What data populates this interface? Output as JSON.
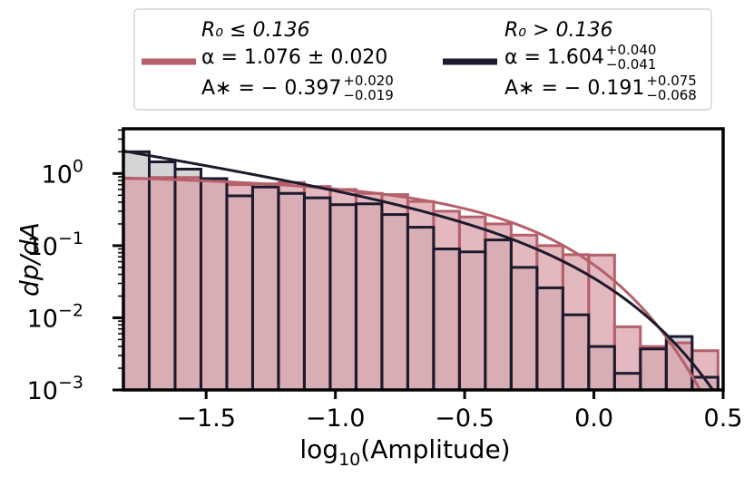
{
  "chart_data": {
    "type": "histogram",
    "xlabel": "log10(Amplitude)",
    "ylabel": "dp/dA",
    "xlim": [
      -1.82,
      0.5
    ],
    "ylim_log10": [
      -3,
      0.62
    ],
    "yscale": "log",
    "grid": false,
    "legend_position": "top-outside",
    "x_ticks": [
      -1.5,
      -1.0,
      -0.5,
      0.0,
      0.5
    ],
    "x_tick_labels": [
      "−1.5",
      "−1.0",
      "−0.5",
      "0.0",
      "0.5"
    ],
    "y_ticks": [
      {
        "base": "10",
        "exp": "0",
        "log": 0
      },
      {
        "base": "10",
        "exp": "−1",
        "log": -1
      },
      {
        "base": "10",
        "exp": "−2",
        "log": -2
      },
      {
        "base": "10",
        "exp": "−3",
        "log": -3
      }
    ],
    "bin_edges": [
      -1.82,
      -1.72,
      -1.62,
      -1.52,
      -1.42,
      -1.32,
      -1.22,
      -1.12,
      -1.02,
      -0.92,
      -0.82,
      -0.72,
      -0.62,
      -0.52,
      -0.42,
      -0.32,
      -0.22,
      -0.12,
      -0.02,
      0.08,
      0.18,
      0.28,
      0.38,
      0.48
    ],
    "series": [
      {
        "name": "R₀ ≤ 0.136",
        "color": "#b5606a",
        "fill": "#d9a0a8",
        "legend_lines": [
          {
            "main": "R₀ ≤ 0.136"
          },
          {
            "main": "α = 1.076 ± 0.020"
          },
          {
            "main": "A∗ = − 0.397",
            "sup": "+0.020",
            "sub": "−0.019"
          }
        ],
        "hist_values": [
          0.85,
          0.88,
          0.88,
          0.8,
          0.7,
          0.72,
          0.75,
          0.66,
          0.6,
          0.53,
          0.51,
          0.41,
          0.3,
          0.25,
          0.2,
          0.14,
          0.1,
          0.075,
          0.074,
          0.0075,
          0.004,
          0.0045,
          0.0035
        ],
        "fit": {
          "alpha": 1.076,
          "A_star_log10": -0.397,
          "norm": 0.87
        }
      },
      {
        "name": "R₀ > 0.136",
        "color": "#1c1a2e",
        "fill": "#d4d4d4",
        "legend_lines": [
          {
            "main": "R₀ > 0.136"
          },
          {
            "main": "α = 1.604",
            "sup": "+0.040",
            "sub": "−0.041"
          },
          {
            "main": "A∗ = − 0.191",
            "sup": "+0.075",
            "sub": "−0.068"
          }
        ],
        "hist_values": [
          2.0,
          1.45,
          1.15,
          0.85,
          0.49,
          0.65,
          0.53,
          0.46,
          0.37,
          0.38,
          0.27,
          0.18,
          0.09,
          0.082,
          0.12,
          0.05,
          0.026,
          0.011,
          0.004,
          0.0017,
          0.0037,
          0.0055,
          0.0015
        ],
        "fit": {
          "alpha": 1.604,
          "A_star_log10": -0.191,
          "norm": 2.05
        }
      }
    ]
  }
}
